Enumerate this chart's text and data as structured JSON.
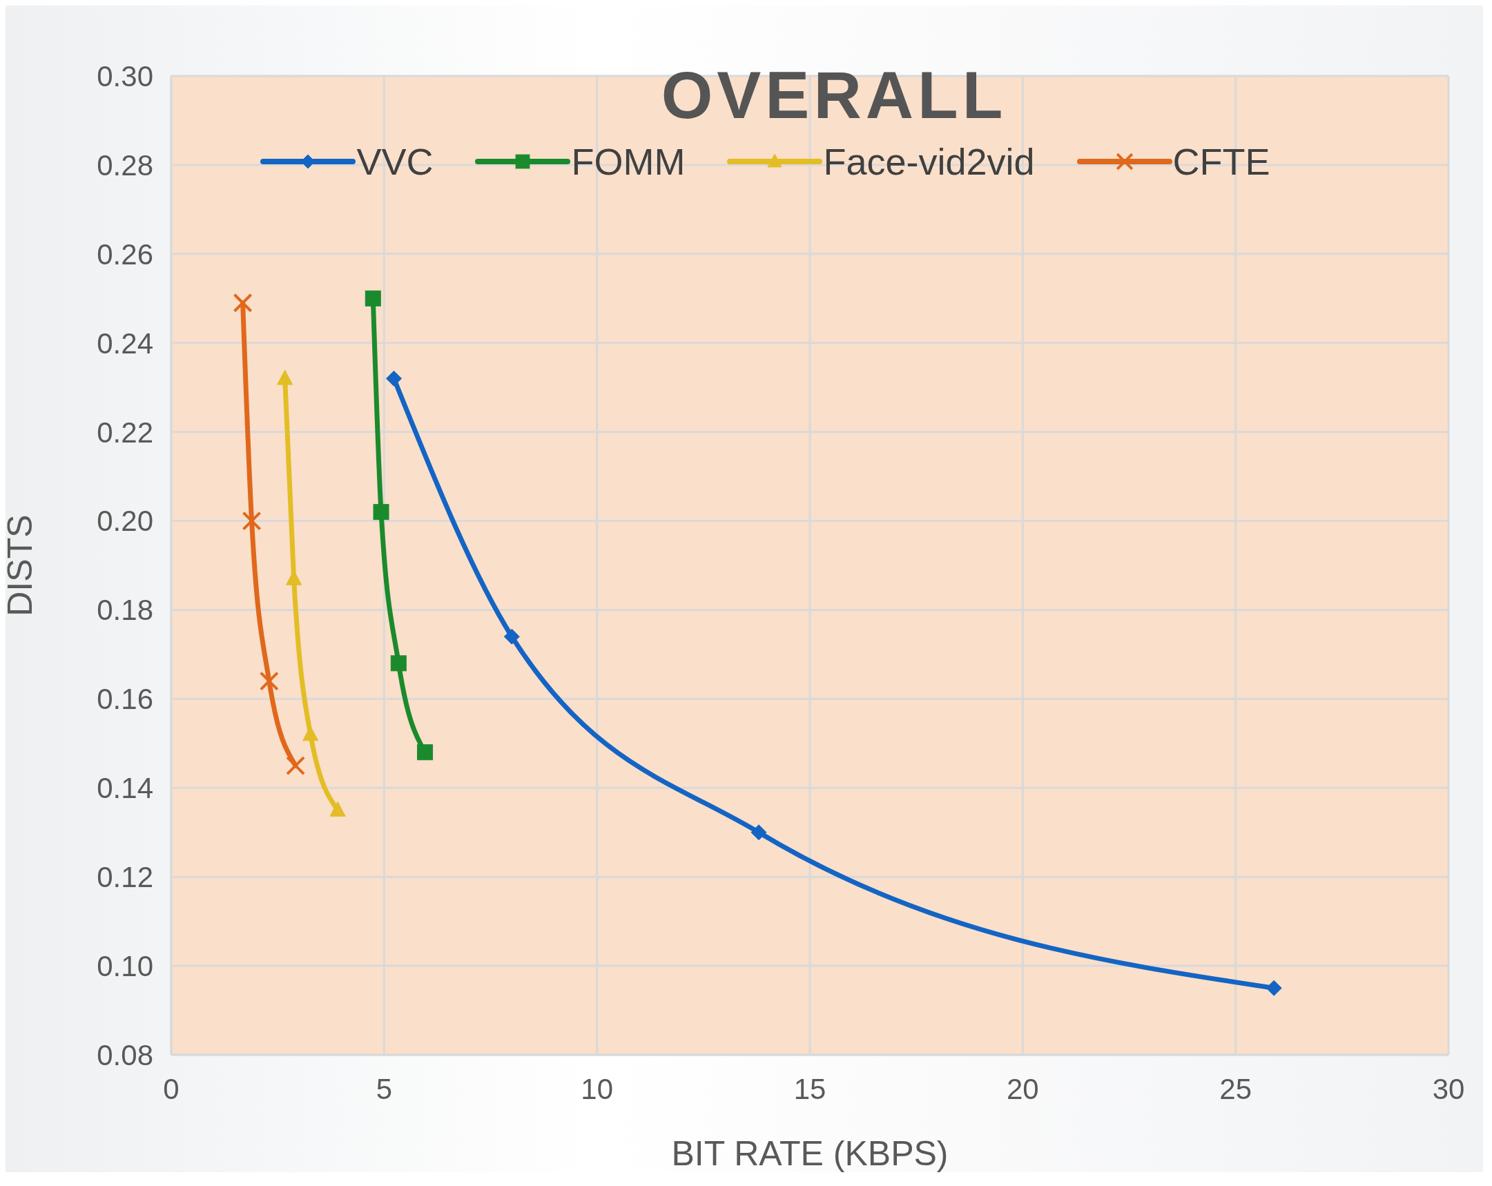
{
  "chart_data": {
    "type": "line",
    "title": "OVERALL",
    "xlabel": "BIT RATE (KBPS)",
    "ylabel": "DISTS",
    "xlim": [
      0,
      30
    ],
    "xticks": [
      0,
      5,
      10,
      15,
      20,
      25,
      30
    ],
    "ylim": [
      0.08,
      0.3
    ],
    "yticks": [
      {
        "value": 0.08,
        "label": "0.08"
      },
      {
        "value": 0.1,
        "label": "0.10"
      },
      {
        "value": 0.12,
        "label": "0.12"
      },
      {
        "value": 0.14,
        "label": "0.14"
      },
      {
        "value": 0.16,
        "label": "0.16"
      },
      {
        "value": 0.18,
        "label": "0.18"
      },
      {
        "value": 0.2,
        "label": "0.20"
      },
      {
        "value": 0.22,
        "label": "0.22"
      },
      {
        "value": 0.24,
        "label": "0.24"
      },
      {
        "value": 0.26,
        "label": "0.26"
      },
      {
        "value": 0.28,
        "label": "0.28"
      },
      {
        "value": 0.3,
        "label": "0.30"
      }
    ],
    "grid": true,
    "legend": "top",
    "line_style": "solid",
    "series": [
      {
        "name": "VVC",
        "color": "#1464c4",
        "marker": "diamond",
        "x": [
          5.23,
          8.0,
          13.8,
          25.9
        ],
        "values": [
          0.232,
          0.174,
          0.13,
          0.095
        ]
      },
      {
        "name": "FOMM",
        "color": "#1b8a2c",
        "marker": "square",
        "x": [
          4.74,
          4.93,
          5.34,
          5.96
        ],
        "values": [
          0.25,
          0.202,
          0.168,
          0.148
        ]
      },
      {
        "name": "Face-vid2vid",
        "color": "#e3bd25",
        "marker": "triangle",
        "x": [
          2.67,
          2.88,
          3.27,
          3.91
        ],
        "values": [
          0.232,
          0.187,
          0.152,
          0.135
        ]
      },
      {
        "name": "CFTE",
        "color": "#e0681c",
        "marker": "cross",
        "x": [
          1.68,
          1.89,
          2.3,
          2.92
        ],
        "values": [
          0.249,
          0.2,
          0.164,
          0.145
        ]
      }
    ]
  }
}
